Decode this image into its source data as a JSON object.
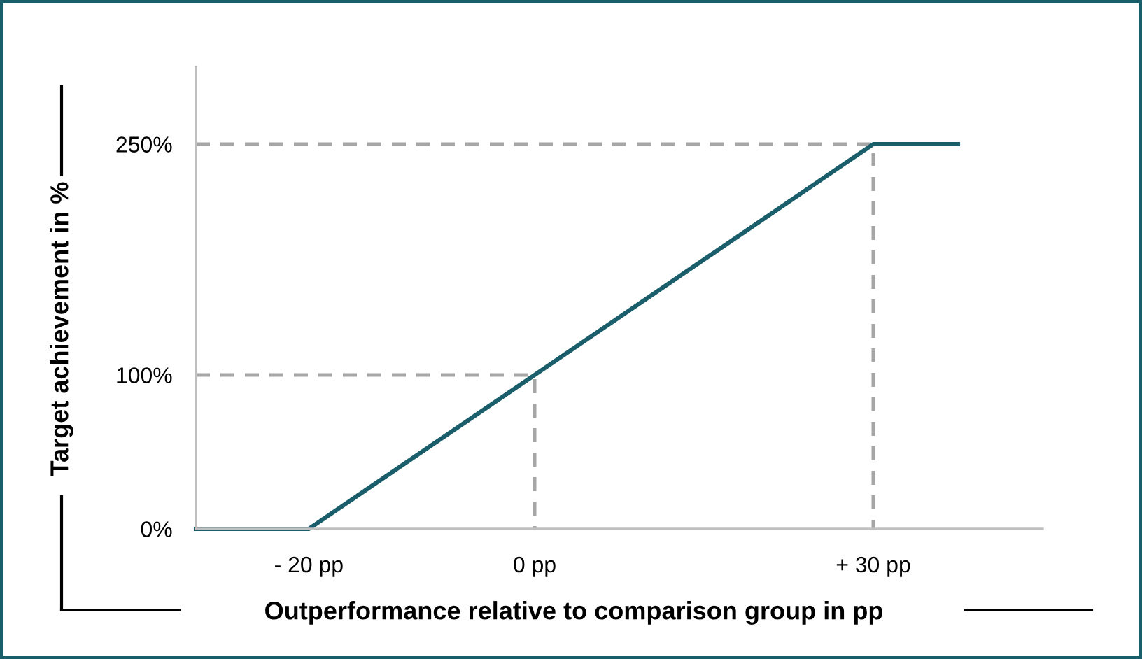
{
  "chart_data": {
    "type": "line",
    "xlabel": "Outperformance relative to comparison group in pp",
    "ylabel": "Target achievement in %",
    "xlim": [
      -30,
      45
    ],
    "ylim": [
      0,
      300
    ],
    "xticks": [
      {
        "value": -20,
        "label": "- 20 pp"
      },
      {
        "value": 0,
        "label": "0 pp"
      },
      {
        "value": 30,
        "label": "+ 30 pp"
      }
    ],
    "yticks": [
      {
        "value": 0,
        "label": "0%"
      },
      {
        "value": 100,
        "label": "100%"
      },
      {
        "value": 250,
        "label": "250%"
      }
    ],
    "grid": false,
    "legend": false,
    "marker": "none",
    "series": [
      {
        "x": [
          -30,
          30,
          30
        ],
        "values": [
          250,
          250,
          0
        ],
        "color": "#a6a6a6",
        "line_style": "dashed"
      },
      {
        "x": [
          -30,
          0,
          0
        ],
        "values": [
          100,
          100,
          0
        ],
        "color": "#a6a6a6",
        "line_style": "dashed"
      },
      {
        "x": [
          -30,
          -20,
          0,
          30,
          37.5
        ],
        "values": [
          0,
          0,
          100,
          250,
          250
        ],
        "color": "#1b5e6b",
        "line_style": "solid"
      }
    ]
  }
}
